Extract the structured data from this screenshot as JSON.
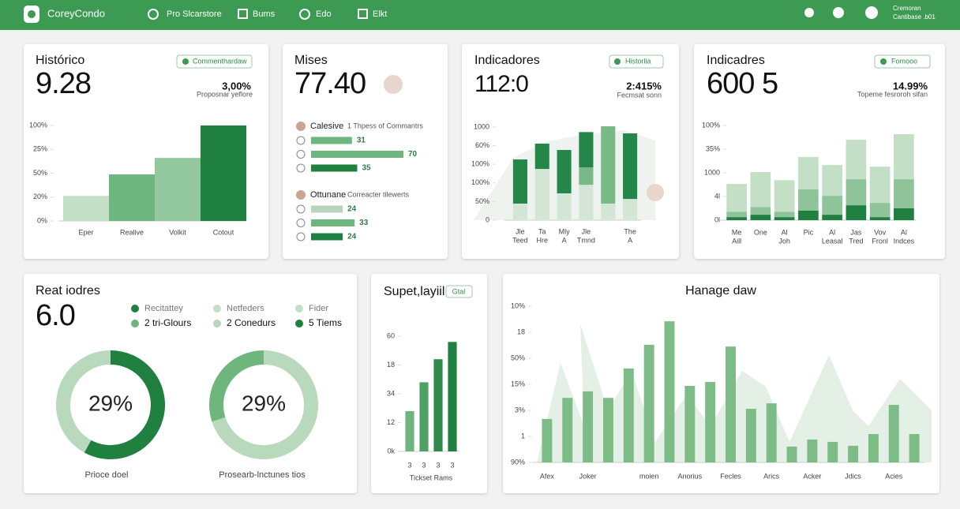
{
  "header": {
    "brand": "CoreyCondo",
    "nav": [
      "Pro Slcarstore",
      "Bums",
      "Edo",
      "Elkt"
    ],
    "user": [
      "Cremoran",
      "Cantibase .b01"
    ]
  },
  "cards": [
    {
      "title": "Histórico",
      "kpi": "9.28",
      "badge": "Commenthardaw",
      "delta": "3,00%",
      "delta_caption": "Proposnar yeflore",
      "chart": {
        "type": "bar",
        "categories": [
          "Eper",
          "Realive",
          "Volkit",
          "Cotout"
        ],
        "values": [
          1.05,
          1.95,
          2.64,
          4.0
        ],
        "colors": [
          "#c3e0c6",
          "#6fb57e",
          "#93c79e",
          "#1f8040"
        ],
        "ylim": [
          0,
          4
        ],
        "yticks": [
          {
            "value": 0,
            "label": "0%"
          },
          {
            "value": 1,
            "label": "20%"
          },
          {
            "value": 2,
            "label": "50%"
          },
          {
            "value": 3,
            "label": "25%"
          },
          {
            "value": 4,
            "label": "100%"
          }
        ]
      }
    },
    {
      "title": "Mises",
      "kpi": "77.40",
      "chart": {
        "type": "hbar",
        "groups": [
          {
            "name": "Calesive",
            "caption": "1 Thpess of Commantrs",
            "values": [
              31,
              70,
              35
            ],
            "colors": [
              "#6fb57e",
              "#6fb57e",
              "#1f8040"
            ]
          },
          {
            "name": "Ottunane",
            "caption": "Correacter tilewerts",
            "values": [
              24,
              33,
              24
            ],
            "colors": [
              "#b9d4bc",
              "#6fb57e",
              "#1f8040"
            ]
          }
        ]
      }
    },
    {
      "title": "Indicadores",
      "kpi": "112:0",
      "badge": "Historlia",
      "delta": "2:415%",
      "delta_caption": "Fecmsat sonn",
      "chart": {
        "type": "stacked",
        "categories": [
          [
            "Jle",
            "Teed"
          ],
          [
            "Ta",
            "Hre"
          ],
          [
            "Mly",
            "A"
          ],
          [
            "Jle",
            "Tmnd"
          ],
          null,
          [
            "The",
            "A"
          ]
        ],
        "ylim": [
          0,
          5
        ],
        "yticks": [
          {
            "value": 0,
            "label": "0"
          },
          {
            "value": 1,
            "label": "50%"
          },
          {
            "value": 2,
            "label": "100%"
          },
          {
            "value": 3,
            "label": "100%"
          },
          {
            "value": 4,
            "label": "60%"
          },
          {
            "value": 5,
            "label": "1000"
          }
        ],
        "series": [
          {
            "color": "#d3e6d6",
            "values": [
              0.89,
              2.75,
              1.44,
              1.9,
              0.89,
              1.14
            ]
          },
          {
            "color": "#79b987",
            "values": [
              0,
              0,
              0,
              0.93,
              4.15,
              0
            ]
          },
          {
            "color": "#25864a",
            "values": [
              2.37,
              1.36,
              2.33,
              1.9,
              0,
              3.52
            ]
          }
        ]
      }
    },
    {
      "title": "Indicadres",
      "kpi": "600 5",
      "badge": "Fomooo",
      "delta": "14.99%",
      "delta_caption": "Topeme fesroroh sifan",
      "chart": {
        "type": "stacked",
        "categories": [
          [
            "Me",
            "Aill"
          ],
          [
            "One"
          ],
          [
            "Al",
            "Joh"
          ],
          [
            "Pic"
          ],
          [
            "Al",
            "Leasal"
          ],
          [
            "Jas",
            "Tred"
          ],
          [
            "Vov",
            "Fronl"
          ],
          [
            "Al",
            "Indces"
          ]
        ],
        "ylim": [
          0,
          4
        ],
        "yticks": [
          {
            "value": 0,
            "label": "0l"
          },
          {
            "value": 1,
            "label": "4l"
          },
          {
            "value": 2,
            "label": "1000"
          },
          {
            "value": 3,
            "label": "35%"
          },
          {
            "value": 4,
            "label": "100%"
          }
        ],
        "series": [
          {
            "color": "#1f8040",
            "values": [
              0.13,
              0.23,
              0.13,
              0.4,
              0.23,
              0.63,
              0.13,
              0.5
            ]
          },
          {
            "color": "#8fc49a",
            "values": [
              0.23,
              0.33,
              0.23,
              0.9,
              0.8,
              1.1,
              0.6,
              1.23
            ]
          },
          {
            "color": "#c3e0c6",
            "values": [
              1.17,
              1.47,
              1.33,
              1.37,
              1.3,
              1.67,
              1.53,
              1.9
            ]
          }
        ]
      }
    },
    {
      "title": "Reat iodres",
      "kpi": "6.0",
      "legend": [
        {
          "label": "Recitattey",
          "color": "#1f8040"
        },
        {
          "label": "Netfeders",
          "color": "#c3e0c6"
        },
        {
          "label": "Fider",
          "color": "#c3e0c6"
        },
        {
          "label": "2 tri-Glours",
          "color": "#6fb57e"
        },
        {
          "label": "2 Conedurs",
          "color": "#b9d4bc"
        },
        {
          "label": "5 Tiems",
          "color": "#1f8040"
        }
      ],
      "chart": {
        "type": "donut",
        "donuts": [
          {
            "center": "29%",
            "caption": "Prioce doel",
            "values": [
              58,
              42
            ],
            "colors": [
              "#1f8040",
              "#b9d9bd"
            ]
          },
          {
            "center": "29%",
            "caption": "Prosearb-lnctunes tios",
            "values": [
              70,
              30
            ],
            "colors": [
              "#b9d9bd",
              "#6fb57e"
            ]
          }
        ]
      }
    },
    {
      "title": "Supet,layiil",
      "badge": "Gtal",
      "chart": {
        "type": "bar",
        "categories": [
          "3",
          "3",
          "3",
          "3"
        ],
        "values": [
          1.4,
          2.4,
          3.2,
          3.8
        ],
        "colors": [
          "#6fb57e",
          "#4fa063",
          "#2e8b4a",
          "#1f8040"
        ],
        "ylim": [
          0,
          4
        ],
        "xlabel": "Tickset Rams",
        "yticks": [
          {
            "value": 0,
            "label": "0k"
          },
          {
            "value": 1,
            "label": "12"
          },
          {
            "value": 2,
            "label": "34"
          },
          {
            "value": 3,
            "label": "18"
          },
          {
            "value": 4,
            "label": "60"
          }
        ]
      }
    },
    {
      "title": "Hanage daw",
      "chart": {
        "type": "bar",
        "categories": [
          "Afex",
          null,
          "Joker",
          null,
          null,
          "moien",
          null,
          "Anorius",
          null,
          "Fecles",
          null,
          "Arics",
          null,
          "Acker",
          null,
          "Jdics",
          null,
          "Acies",
          null
        ],
        "values": [
          1.67,
          2.48,
          2.73,
          2.48,
          3.61,
          4.52,
          5.42,
          2.94,
          3.09,
          4.45,
          2.06,
          2.27,
          0.61,
          0.88,
          0.79,
          0.64,
          1.09,
          2.21,
          1.09
        ],
        "color": "#7dbb87",
        "ylim": [
          0,
          6
        ],
        "yticks": [
          {
            "value": 0,
            "label": "90%"
          },
          {
            "value": 1,
            "label": "1"
          },
          {
            "value": 2,
            "label": "3%"
          },
          {
            "value": 3,
            "label": "15%"
          },
          {
            "value": 4,
            "label": "50%"
          },
          {
            "value": 5,
            "label": "18"
          },
          {
            "value": 6,
            "label": "10%"
          }
        ]
      }
    }
  ]
}
